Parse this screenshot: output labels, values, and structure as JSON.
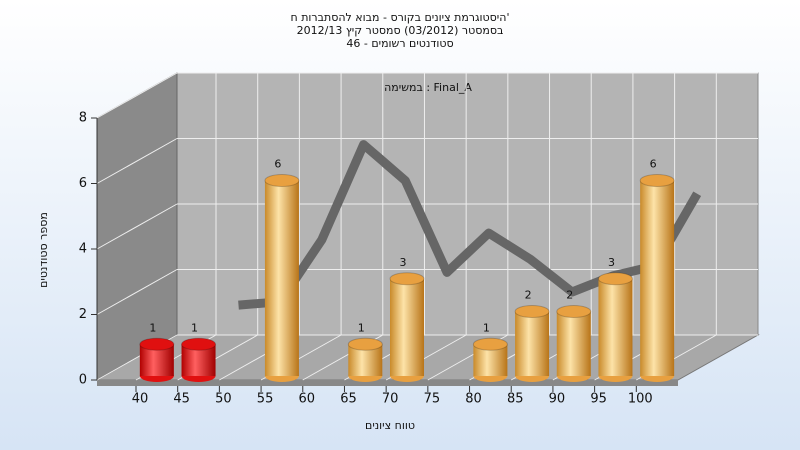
{
  "chart_data": {
    "type": "bar3d",
    "title": "היסטוגרמת ציונים בקורס - מבוא להסתברות ח'",
    "subtitle": "בסמסטר  (03/2012)  סמסטר קיץ 2012/13",
    "subtitle2": "סטודנטים רשומים - 46",
    "annotation": "במשימה : Final_A",
    "x_label": "טווח ציונים",
    "y_label": "מספר סטודנטים",
    "categories": [
      "40",
      "45",
      "50",
      "55",
      "60",
      "65",
      "70",
      "75",
      "80",
      "85",
      "90",
      "95",
      "100"
    ],
    "values": [
      1,
      1,
      0,
      6,
      0,
      1,
      3,
      0,
      1,
      2,
      2,
      3,
      6
    ],
    "colors": [
      "#e01010",
      "#e01010",
      "#e8a040",
      "#e8a040",
      "#e8a040",
      "#e8a040",
      "#e8a040",
      "#e8a040",
      "#e8a040",
      "#e8a040",
      "#e8a040",
      "#e8a040",
      "#e8a040"
    ],
    "curve_values": [
      null,
      1.6,
      1.7,
      3.6,
      6.5,
      5.4,
      2.6,
      3.8,
      3.0,
      2.0,
      2.5,
      2.8,
      5.0
    ],
    "curve_color": "#666666",
    "ylim": [
      0,
      8
    ],
    "yticks": [
      0,
      2,
      4,
      6,
      8
    ],
    "grid": true
  }
}
